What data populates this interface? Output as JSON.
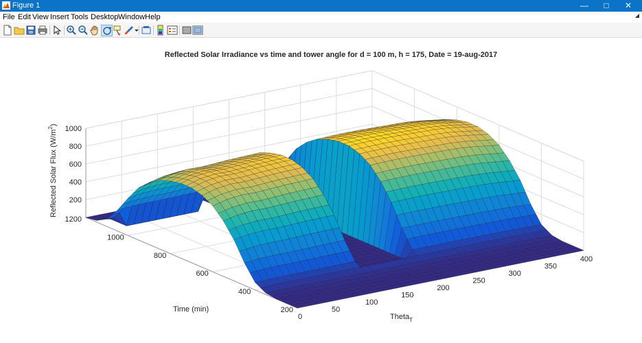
{
  "window": {
    "title": "Figure 1",
    "icon": "matlab-figure-icon",
    "controls": {
      "minimize": "—",
      "maximize": "□",
      "close": "✕"
    }
  },
  "menu": [
    "File",
    "Edit",
    "View",
    "Insert",
    "Tools",
    "Desktop",
    "Window",
    "Help"
  ],
  "toolbar": {
    "tools": [
      "new-figure-icon",
      "open-file-icon",
      "save-icon",
      "print-icon",
      "edit-plot-arrow-icon",
      "zoom-in-icon",
      "zoom-out-icon",
      "pan-hand-icon",
      "rotate-3d-icon",
      "data-cursor-icon",
      "brush-icon",
      "link-plot-icon",
      "insert-colorbar-icon",
      "insert-legend-icon",
      "hide-plot-tools-icon",
      "show-plot-tools-icon"
    ]
  },
  "colors": {
    "titlebar": "#0b74c9",
    "colormap": "parula",
    "grid": "#dcdcdc"
  },
  "chart_data": {
    "type": "surface3d",
    "title": "Reflected Solar Irradiance vs time and tower angle for d = 100 m, h = 175, Date = 19-aug-2017",
    "xlabel": "Theta",
    "xlabel_subscript": "T",
    "ylabel": "Time (min)",
    "zlabel": "Reflected Solar Flux (W/m",
    "zlabel_sup": "2",
    "zlabel_end": ")",
    "xlim": [
      0,
      400
    ],
    "ylim": [
      200,
      1200
    ],
    "zlim": [
      0,
      1000
    ],
    "xticks": [
      0,
      50,
      100,
      150,
      200,
      250,
      300,
      350,
      400
    ],
    "yticks": [
      200,
      400,
      600,
      800,
      1000,
      1200
    ],
    "zticks": [
      200,
      400,
      600,
      800,
      1000
    ],
    "ztick_labels": [
      "200",
      "400",
      "600",
      "800",
      "1000"
    ],
    "grid": true,
    "colormap": "parula",
    "theta_profile": {
      "theta": [
        0,
        20,
        40,
        60,
        80,
        100,
        120,
        140,
        160,
        180,
        200,
        220,
        240,
        260,
        280,
        300,
        320,
        340,
        360,
        380,
        400
      ],
      "peak_flux": [
        840,
        885,
        905,
        900,
        910,
        920,
        925,
        930,
        935,
        940,
        950,
        955,
        960,
        962,
        960,
        955,
        950,
        945,
        930,
        905,
        880
      ]
    },
    "time_profile": {
      "time": [
        200,
        300,
        350,
        400,
        450,
        500,
        550,
        600,
        650,
        700,
        750,
        800,
        850,
        900,
        950,
        1000,
        1050,
        1100,
        1150,
        1200
      ],
      "relative_flux": [
        0,
        0,
        0.02,
        0.1,
        0.3,
        0.55,
        0.74,
        0.88,
        0.96,
        1.0,
        1.0,
        0.97,
        0.92,
        0.83,
        0.7,
        0.5,
        0.28,
        0.1,
        0.02,
        0
      ]
    },
    "shadow_notches": [
      {
        "theta_start": 150,
        "theta_end": 215,
        "time_start": 380,
        "time_end": 1200,
        "flux": 0
      },
      {
        "theta_start": 20,
        "theta_end": 120,
        "time_start": 1060,
        "time_end": 1200,
        "flux": 0
      }
    ]
  }
}
